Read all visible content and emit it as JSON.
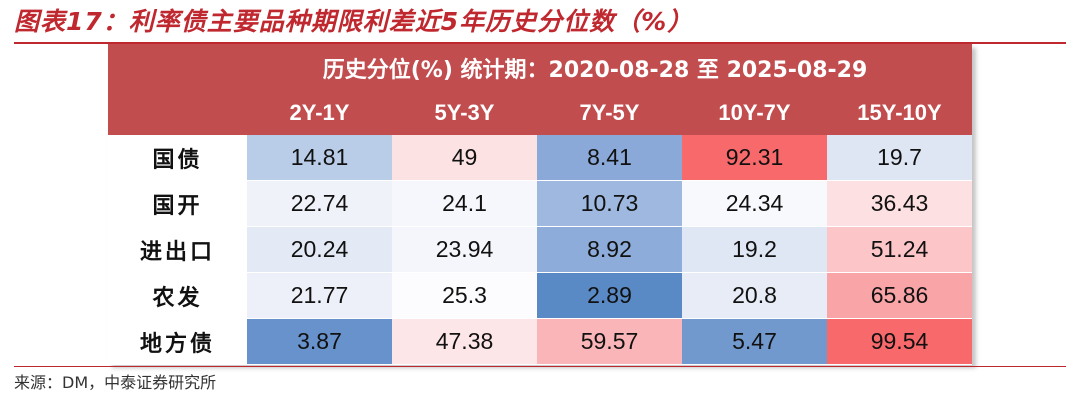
{
  "figure": {
    "title": "图表17：利率债主要品种期限利差近5年历史分位数（%）",
    "source": "来源：DM，中泰证券研究所"
  },
  "table": {
    "caption": "历史分位(%) 统计期：2020-08-28 至 2025-08-29",
    "columns": [
      "2Y-1Y",
      "5Y-3Y",
      "7Y-5Y",
      "10Y-7Y",
      "15Y-10Y"
    ],
    "rows": [
      {
        "label": "国债",
        "values": [
          "14.81",
          "49",
          "8.41",
          "92.31",
          "19.7"
        ],
        "colors": [
          "#b9cde8",
          "#fde2e4",
          "#8aa9d9",
          "#f8696b",
          "#dfe6f3"
        ]
      },
      {
        "label": "国开",
        "values": [
          "22.74",
          "24.1",
          "10.73",
          "24.34",
          "36.43"
        ],
        "colors": [
          "#f0f2f9",
          "#f6f7fc",
          "#9eb8df",
          "#f8f9fd",
          "#fde0e2"
        ]
      },
      {
        "label": "进出口",
        "values": [
          "20.24",
          "23.94",
          "8.92",
          "19.2",
          "51.24"
        ],
        "colors": [
          "#e3e9f5",
          "#f5f6fb",
          "#8eacda",
          "#e0e7f4",
          "#fcc6c9"
        ]
      },
      {
        "label": "农发",
        "values": [
          "21.77",
          "25.3",
          "2.89",
          "20.8",
          "65.86"
        ],
        "colors": [
          "#edf0f8",
          "#fcfcfe",
          "#5a8ac6",
          "#e8ecf6",
          "#f9a4a7"
        ]
      },
      {
        "label": "地方债",
        "values": [
          "3.87",
          "47.38",
          "59.57",
          "5.47",
          "99.54"
        ],
        "colors": [
          "#6892cb",
          "#fde6e8",
          "#fab5b8",
          "#7299ce",
          "#f8696b"
        ]
      }
    ]
  }
}
